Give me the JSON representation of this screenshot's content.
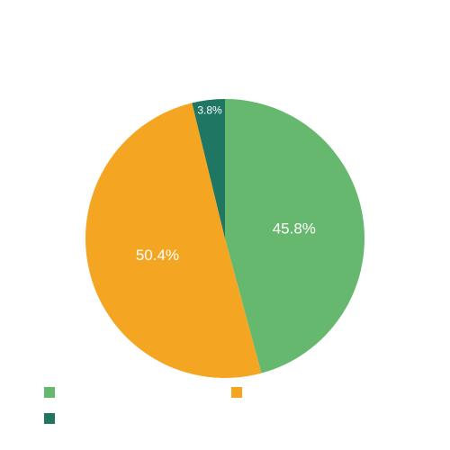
{
  "chart_data": {
    "type": "pie",
    "title": "",
    "slices": [
      {
        "name": "",
        "value": 45.8,
        "label": "45.8%",
        "color": "#67b86f"
      },
      {
        "name": "",
        "value": 50.4,
        "label": "50.4%",
        "color": "#f4a623"
      },
      {
        "name": "",
        "value": 3.8,
        "label": "3.8%",
        "color": "#1f7763"
      }
    ],
    "start_angle_deg": -90,
    "direction": "clockwise",
    "legend_position": "bottom-left",
    "label_color": "#ffffff"
  }
}
